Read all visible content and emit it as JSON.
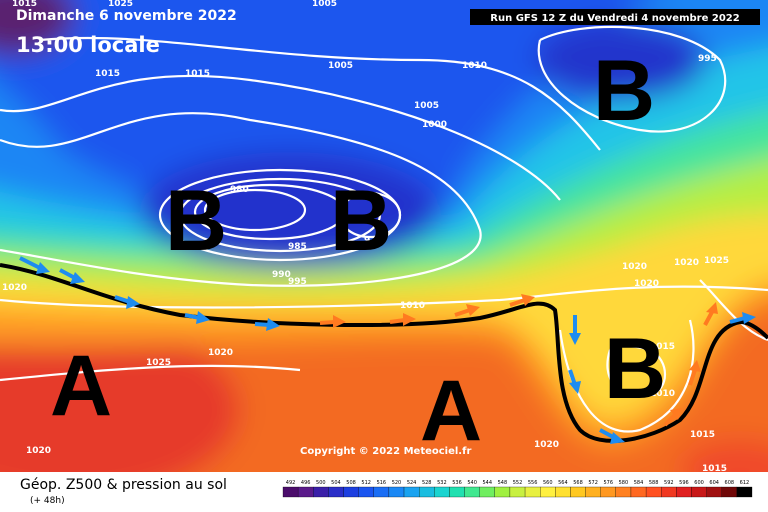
{
  "header": {
    "date": "Dimanche 6 novembre 2022",
    "time": "13:00 locale",
    "run": "Run GFS 12 Z du Vendredi 4 novembre 2022"
  },
  "pressure_centers": [
    "B",
    "B",
    "B",
    "A",
    "A",
    "B"
  ],
  "isobar_labels": [
    "1015",
    "1025",
    "1005",
    "1015",
    "1015",
    "1005",
    "1010",
    "995",
    "1005",
    "1000",
    "980",
    "985",
    "990",
    "995",
    "970",
    "1020",
    "1010",
    "1020",
    "1020",
    "1025",
    "1020",
    "1025",
    "1020",
    "1015",
    "1010",
    "1015",
    "1020",
    "1015",
    "1020"
  ],
  "copyright": "Copyright © 2022 Meteociel.fr",
  "footer": {
    "title": "Géop. Z500 & pression au sol",
    "lead": "(+ 48h)"
  },
  "legend": {
    "labels": [
      "492",
      "496",
      "500",
      "504",
      "508",
      "512",
      "516",
      "520",
      "524",
      "528",
      "532",
      "536",
      "540",
      "544",
      "548",
      "552",
      "556",
      "560",
      "564",
      "568",
      "572",
      "576",
      "580",
      "584",
      "588",
      "592",
      "596",
      "600",
      "604",
      "608",
      "612"
    ],
    "colors": [
      "#4b0d6b",
      "#5a1a8a",
      "#3a1fa8",
      "#2a2ec8",
      "#1d3fe0",
      "#1a55f0",
      "#1a6ef5",
      "#1a88f5",
      "#1aa3f0",
      "#1abde0",
      "#1ad4d0",
      "#20e0b0",
      "#40e890",
      "#70ee60",
      "#a0f040",
      "#c8f040",
      "#e8f040",
      "#fff040",
      "#ffe030",
      "#ffc820",
      "#ffb020",
      "#ff9820",
      "#ff8020",
      "#ff6820",
      "#ff5020",
      "#f03820",
      "#e02020",
      "#c81818",
      "#a01010",
      "#700808",
      "#000000"
    ]
  }
}
